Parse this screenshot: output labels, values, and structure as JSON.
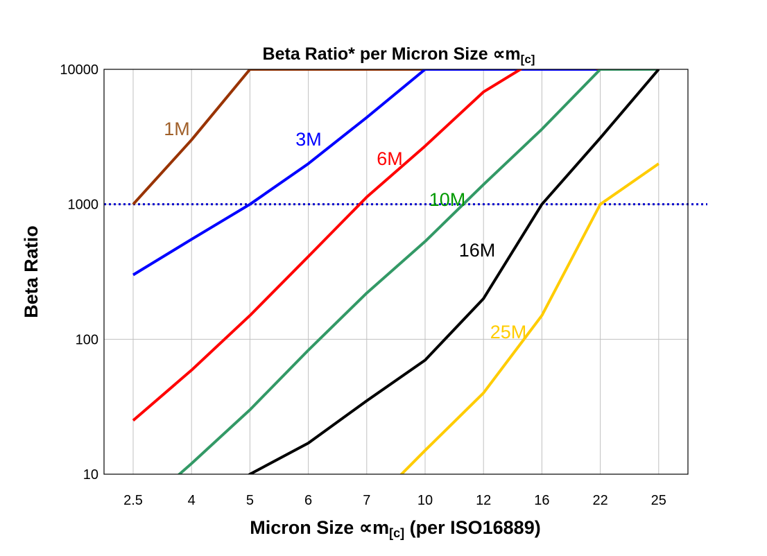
{
  "chart_data": {
    "type": "line",
    "title": "Beta Ratio* per Micron Size ∝m",
    "title_sub": "[c]",
    "xlabel": "Micron Size ∝m",
    "xlabel_sub": "[c]",
    "xlabel_suffix": " (per ISO16889)",
    "ylabel": "Beta Ratio",
    "categories": [
      "2.5",
      "4",
      "5",
      "6",
      "7",
      "10",
      "12",
      "16",
      "22",
      "25"
    ],
    "y_scale": "log",
    "ylim": [
      10,
      10000
    ],
    "yticks": [
      "10",
      "100",
      "1000",
      "10000"
    ],
    "grid": true,
    "reference_line": {
      "y": 1000,
      "style": "dotted",
      "color": "#0000cc"
    },
    "series": [
      {
        "name": "1M",
        "color": "#993300",
        "label_color": "#a0602a",
        "values": [
          1000,
          3000,
          10000,
          10000,
          10000,
          10000,
          10000,
          10000,
          10000,
          10000
        ]
      },
      {
        "name": "3M",
        "color": "#0000ff",
        "label_color": "#0000ff",
        "values": [
          300,
          550,
          1000,
          2000,
          4400,
          10000,
          10000,
          10000,
          10000,
          10000
        ]
      },
      {
        "name": "6M",
        "color": "#ff0000",
        "label_color": "#ff0000",
        "values": [
          25,
          59,
          150,
          410,
          1130,
          2700,
          6800,
          12500,
          10000,
          10000
        ]
      },
      {
        "name": "10M",
        "color": "#339966",
        "label_color": "#009900",
        "values": [
          5,
          12,
          30,
          83,
          220,
          530,
          1400,
          3600,
          10000,
          10000
        ]
      },
      {
        "name": "16M",
        "color": "#000000",
        "label_color": "#000000",
        "values": [
          null,
          5,
          10,
          17,
          35,
          70,
          200,
          1000,
          3100,
          10000
        ]
      },
      {
        "name": "25M",
        "color": "#ffcc00",
        "label_color": "#ffcc00",
        "values": [
          null,
          null,
          null,
          null,
          5.5,
          15,
          40,
          150,
          1000,
          2000
        ]
      }
    ]
  }
}
